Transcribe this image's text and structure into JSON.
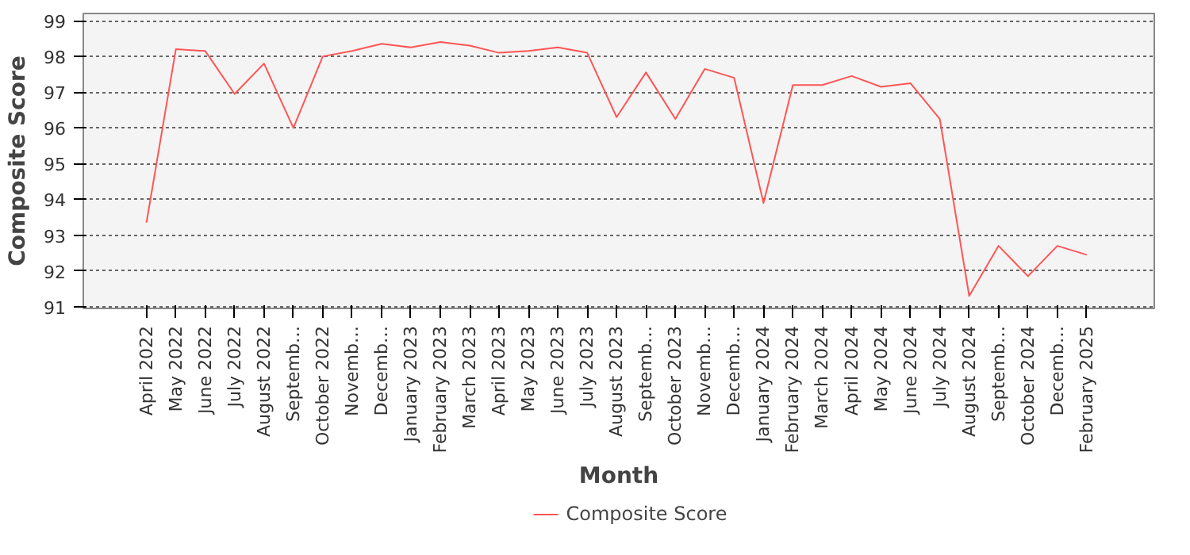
{
  "chart_data": {
    "type": "line",
    "xlabel": "Month",
    "ylabel": "Composite Score",
    "categories": [
      "April 2022",
      "May 2022",
      "June 2022",
      "July 2022",
      "August 2022",
      "Septemb…",
      "October 2022",
      "Novemb…",
      "Decemb…",
      "January 2023",
      "February 2023",
      "March 2023",
      "April 2023",
      "May 2023",
      "June 2023",
      "July 2023",
      "August 2023",
      "Septemb…",
      "October 2023",
      "Novemb…",
      "Decemb…",
      "January 2024",
      "February 2024",
      "March 2024",
      "April 2024",
      "May 2024",
      "June 2024",
      "July 2024",
      "August 2024",
      "Septemb…",
      "October 2024",
      "Decemb…",
      "February 2025"
    ],
    "series": [
      {
        "name": "Composite Score",
        "color": "#ff5555",
        "values": [
          93.35,
          98.2,
          98.15,
          96.95,
          97.8,
          96.0,
          98.0,
          98.15,
          98.35,
          98.25,
          98.4,
          98.3,
          98.1,
          98.15,
          98.25,
          98.1,
          96.3,
          97.55,
          96.25,
          97.65,
          97.4,
          93.9,
          97.2,
          97.2,
          97.45,
          97.15,
          97.25,
          96.25,
          91.3,
          92.7,
          91.85,
          92.7,
          92.45
        ]
      }
    ],
    "ylim": [
      90.95,
      99.2
    ],
    "yticks": [
      91,
      92,
      93,
      94,
      95,
      96,
      97,
      98,
      99
    ],
    "grid": "y",
    "legend": "bottom",
    "marker": "none",
    "line_style": "solid"
  }
}
